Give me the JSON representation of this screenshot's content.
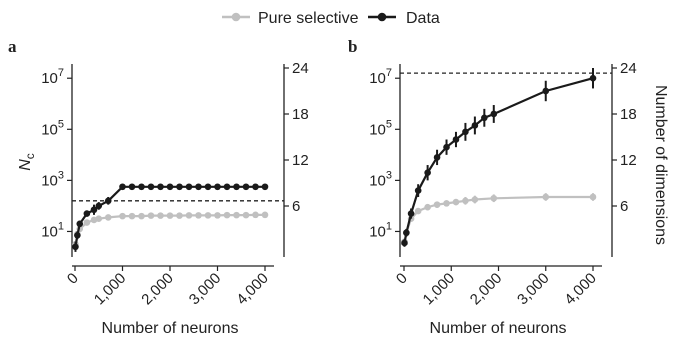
{
  "legend": {
    "placement": "top-center",
    "items": [
      {
        "label": "Pure selective",
        "color": "#c0c0c0"
      },
      {
        "label": "Data",
        "color": "#1a1a1a"
      }
    ]
  },
  "chart_data": [
    {
      "panel": "a",
      "type": "line",
      "xlabel": "Number of neurons",
      "ylabel": "N",
      "ylabel_sub": "c",
      "ylabel_right": "",
      "xlim": [
        0,
        4300
      ],
      "ylim_log10": [
        0,
        7.4
      ],
      "xticks": [
        0,
        1000,
        2000,
        3000,
        4000
      ],
      "xtick_labels": [
        "0",
        "1,000",
        "2,000",
        "3,000",
        "4,000"
      ],
      "yticks": [
        1,
        3,
        5,
        7
      ],
      "ytick_labels": [
        "10",
        "10",
        "10",
        "10"
      ],
      "ytick_exponents": [
        "1",
        "3",
        "5",
        "7"
      ],
      "right_ticks": [
        6,
        12,
        18,
        24
      ],
      "right_tick_labels": [
        "6",
        "12",
        "18",
        "24"
      ],
      "dashed_line_log10": 2.2,
      "series": [
        {
          "name": "Data",
          "color": "#1a1a1a",
          "x": [
            10,
            50,
            100,
            250,
            400,
            500,
            700,
            1000,
            1200,
            1400,
            1600,
            1800,
            2000,
            2200,
            2400,
            2600,
            2800,
            3000,
            3200,
            3400,
            3600,
            3800,
            4000
          ],
          "log10_y": [
            0.4,
            0.85,
            1.3,
            1.7,
            1.85,
            2.0,
            2.2,
            2.75,
            2.75,
            2.75,
            2.75,
            2.75,
            2.75,
            2.75,
            2.75,
            2.75,
            2.75,
            2.75,
            2.75,
            2.75,
            2.75,
            2.75,
            2.75
          ],
          "log10_err": [
            0.2,
            0.15,
            0.12,
            0.12,
            0.2,
            0.15,
            0.15,
            0.05,
            0.05,
            0.05,
            0.05,
            0.05,
            0.05,
            0.05,
            0.05,
            0.05,
            0.05,
            0.05,
            0.05,
            0.05,
            0.05,
            0.05,
            0.05
          ]
        },
        {
          "name": "Pure selective",
          "color": "#c0c0c0",
          "x": [
            10,
            50,
            100,
            250,
            400,
            500,
            700,
            1000,
            1200,
            1400,
            1600,
            1800,
            2000,
            2200,
            2400,
            2600,
            2800,
            3000,
            3200,
            3400,
            3600,
            3800,
            4000
          ],
          "log10_y": [
            0.5,
            0.9,
            1.1,
            1.35,
            1.45,
            1.5,
            1.55,
            1.6,
            1.6,
            1.6,
            1.62,
            1.62,
            1.62,
            1.62,
            1.63,
            1.63,
            1.63,
            1.63,
            1.64,
            1.64,
            1.64,
            1.65,
            1.65
          ],
          "log10_err": [
            0.1,
            0.1,
            0.1,
            0.1,
            0.1,
            0.1,
            0.1,
            0.08,
            0.08,
            0.08,
            0.08,
            0.08,
            0.08,
            0.08,
            0.08,
            0.08,
            0.08,
            0.08,
            0.08,
            0.08,
            0.08,
            0.08,
            0.08
          ]
        }
      ]
    },
    {
      "panel": "b",
      "type": "line",
      "xlabel": "Number of neurons",
      "ylabel": "",
      "ylabel_sub": "",
      "ylabel_right": "Number of dimensions",
      "xlim": [
        0,
        4300
      ],
      "ylim_log10": [
        0,
        7.4
      ],
      "xticks": [
        0,
        1000,
        2000,
        3000,
        4000
      ],
      "xtick_labels": [
        "0",
        "1,000",
        "2,000",
        "3,000",
        "4,000"
      ],
      "yticks": [
        1,
        3,
        5,
        7
      ],
      "ytick_labels": [
        "10",
        "10",
        "10",
        "10"
      ],
      "ytick_exponents": [
        "1",
        "3",
        "5",
        "7"
      ],
      "right_ticks": [
        6,
        12,
        18,
        24
      ],
      "right_tick_labels": [
        "6",
        "12",
        "18",
        "24"
      ],
      "dashed_line_log10": 7.2,
      "series": [
        {
          "name": "Data",
          "color": "#1a1a1a",
          "x": [
            10,
            50,
            150,
            300,
            500,
            700,
            900,
            1100,
            1300,
            1500,
            1700,
            1900,
            3000,
            4000
          ],
          "log10_y": [
            0.55,
            0.95,
            1.7,
            2.6,
            3.3,
            3.9,
            4.3,
            4.6,
            4.9,
            5.15,
            5.45,
            5.6,
            6.5,
            7.0
          ],
          "log10_err": [
            0.15,
            0.15,
            0.2,
            0.25,
            0.3,
            0.3,
            0.3,
            0.3,
            0.35,
            0.35,
            0.35,
            0.35,
            0.4,
            0.4
          ]
        },
        {
          "name": "Pure selective",
          "color": "#c0c0c0",
          "x": [
            10,
            50,
            150,
            300,
            500,
            700,
            900,
            1100,
            1300,
            1500,
            1900,
            3000,
            4000
          ],
          "log10_y": [
            0.6,
            0.95,
            1.5,
            1.8,
            1.95,
            2.05,
            2.1,
            2.15,
            2.2,
            2.25,
            2.3,
            2.35,
            2.35
          ],
          "log10_err": [
            0.1,
            0.1,
            0.1,
            0.1,
            0.12,
            0.12,
            0.12,
            0.12,
            0.15,
            0.15,
            0.15,
            0.15,
            0.15
          ]
        }
      ]
    }
  ]
}
